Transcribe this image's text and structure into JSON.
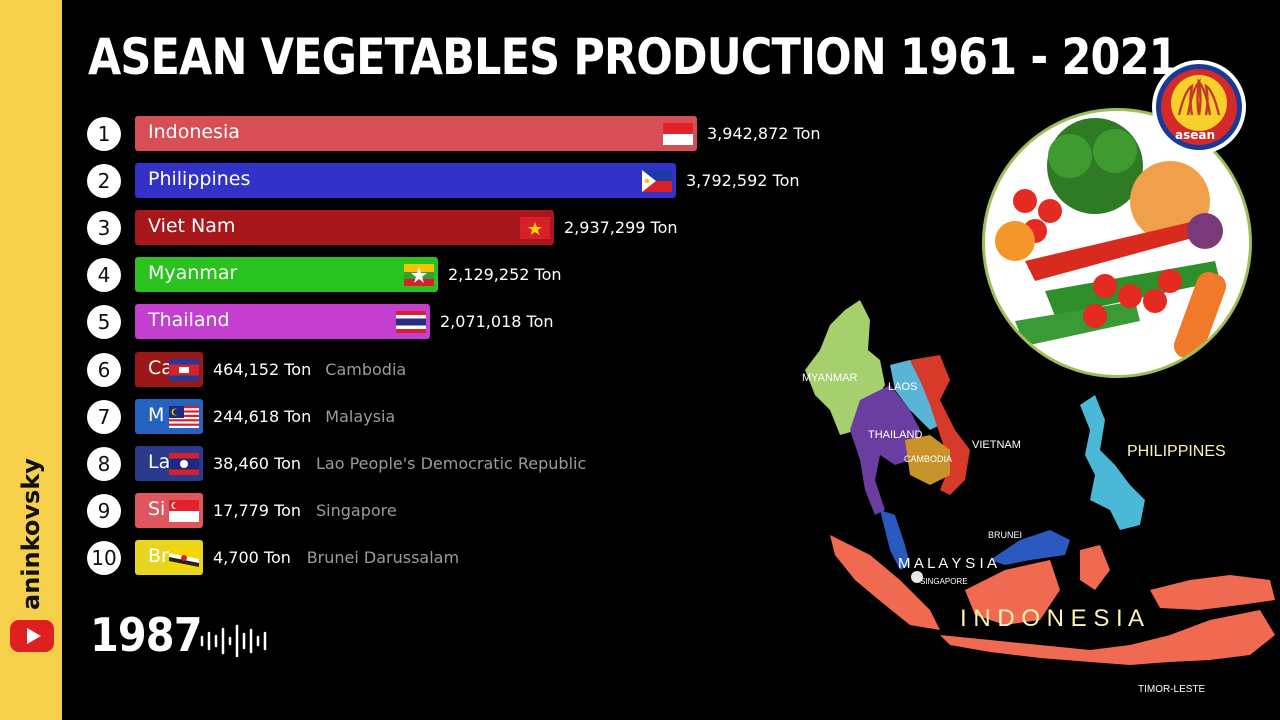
{
  "sidebar": {
    "channel_name": "aninkovsky",
    "youtube_icon": "youtube-play-icon",
    "background": "#f6d04b"
  },
  "title": "ASEAN VEGETABLES PRODUCTION 1961 - 2021",
  "year": "1987",
  "chart_data": {
    "type": "bar",
    "orientation": "horizontal",
    "title": "ASEAN VEGETABLES PRODUCTION 1961 - 2021",
    "unit": "Ton",
    "current_year": "1987",
    "ranks": [
      "1",
      "2",
      "3",
      "4",
      "5",
      "6",
      "7",
      "8",
      "9",
      "10"
    ],
    "categories": [
      "Indonesia",
      "Philippines",
      "Viet Nam",
      "Myanmar",
      "Thailand",
      "Cambodia",
      "Malaysia",
      "Lao People's Democratic Republic",
      "Singapore",
      "Brunei Darussalam"
    ],
    "values": [
      3942872,
      3792592,
      2937299,
      2129252,
      2071018,
      464152,
      244618,
      38460,
      17779,
      4700
    ],
    "value_labels": [
      "3,942,872 Ton",
      "3,792,592 Ton",
      "2,937,299 Ton",
      "2,129,252 Ton",
      "2,071,018 Ton",
      "464,152 Ton",
      "244,618 Ton",
      "38,460 Ton",
      "17,779 Ton",
      "4,700 Ton"
    ],
    "bar_labels": [
      "Indonesia",
      "Philippines",
      "Viet Nam",
      "Myanmar",
      "Thailand",
      "Ca",
      "M",
      "La",
      "Si",
      "Br"
    ],
    "colors": [
      "#d64f55",
      "#3232c8",
      "#a8171c",
      "#2ac21e",
      "#c43ed0",
      "#9c1818",
      "#2563c0",
      "#2a3a8c",
      "#e0565c",
      "#e8d520"
    ],
    "flags": [
      "indonesia-flag",
      "philippines-flag",
      "vietnam-flag",
      "myanmar-flag",
      "thailand-flag",
      "cambodia-flag",
      "malaysia-flag",
      "laos-flag",
      "singapore-flag",
      "brunei-flag"
    ],
    "xlim": [
      0,
      3942872
    ]
  },
  "map_labels": {
    "myanmar": "MYANMAR",
    "laos": "LAOS",
    "thailand": "THAILAND",
    "vietnam": "VIETNAM",
    "cambodia": "CAMBODIA",
    "philippines": "PHILIPPINES",
    "brunei": "BRUNEI",
    "malaysia": "M A L A Y S I A",
    "singapore": "SINGAPORE",
    "indonesia": "I N D O N E S I A",
    "timor": "TIMOR-LESTE"
  },
  "logo": {
    "text": "asean",
    "icon": "asean-logo-icon"
  },
  "vegetables_icon": "vegetables-photo-icon",
  "wave_icon": "audio-wave-icon"
}
